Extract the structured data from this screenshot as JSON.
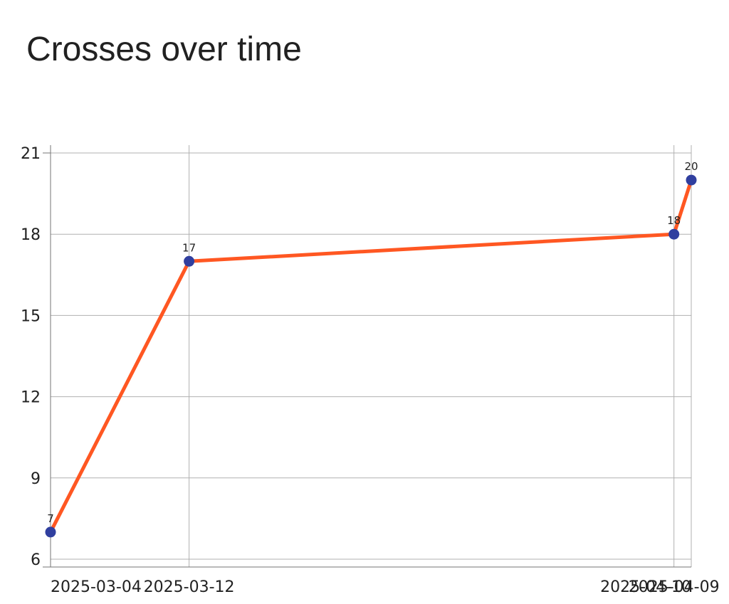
{
  "chart_data": {
    "type": "line",
    "title": "Crosses over time",
    "xlabel": "",
    "ylabel": "",
    "x": [
      "2025-03-04",
      "2025-03-12",
      "2025-04-09",
      "2025-04-10"
    ],
    "series": [
      {
        "values": [
          7,
          17,
          18,
          20
        ]
      }
    ],
    "ylim": [
      6,
      21
    ],
    "yticks": [
      6,
      9,
      12,
      15,
      18,
      21
    ],
    "grid": true,
    "data_labels": true,
    "colors": {
      "line": "#ff5722",
      "marker": "#303f9f",
      "grid": "#b0b0b0",
      "axis": "#757575"
    }
  }
}
